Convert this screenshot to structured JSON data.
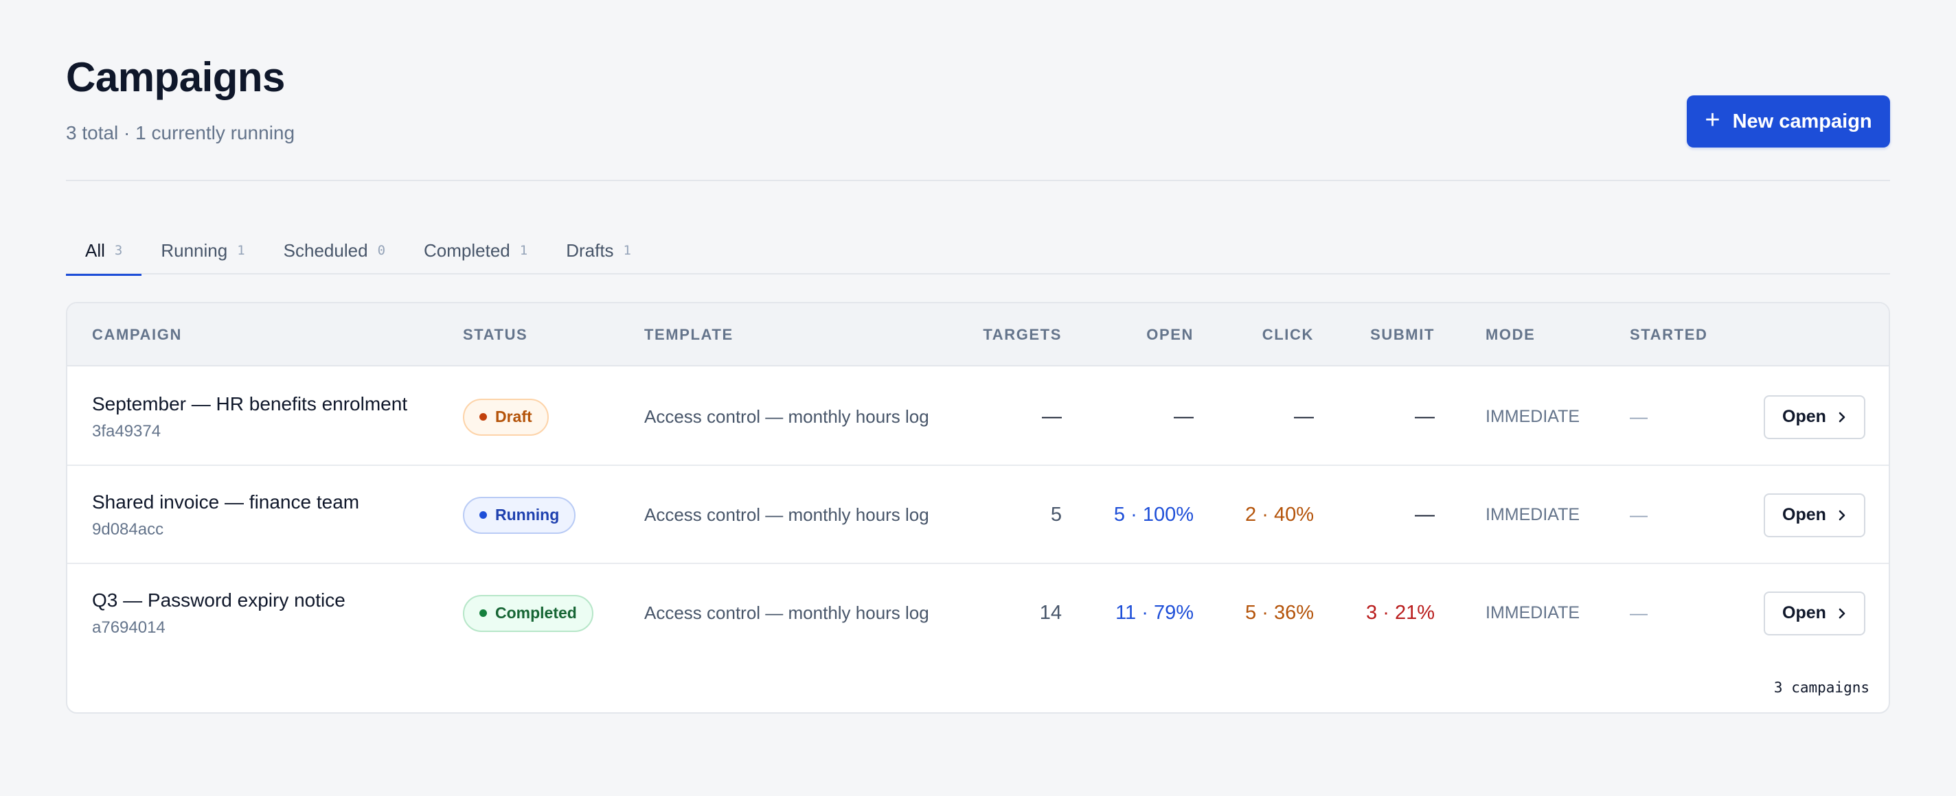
{
  "header": {
    "title": "Campaigns",
    "subtitle": "3 total · 1 currently running",
    "new_button": {
      "icon": "plus-icon",
      "label": "New campaign"
    }
  },
  "tabs": [
    {
      "label": "All",
      "count": "3",
      "active": true
    },
    {
      "label": "Running",
      "count": "1"
    },
    {
      "label": "Scheduled",
      "count": "0"
    },
    {
      "label": "Completed",
      "count": "1"
    },
    {
      "label": "Drafts",
      "count": "1"
    }
  ],
  "table": {
    "columns": {
      "campaign": "CAMPAIGN",
      "status": "STATUS",
      "template": "TEMPLATE",
      "targets": "TARGETS",
      "open": "OPEN",
      "click": "CLICK",
      "submit": "SUBMIT",
      "mode": "MODE",
      "started": "STARTED"
    },
    "rows": [
      {
        "name": "September — HR benefits enrolment",
        "id": "3fa49374",
        "status": "Draft",
        "template": "Access control — monthly hours log",
        "targets": "—",
        "open": "—",
        "click": "—",
        "submit": "—",
        "mode": "IMMEDIATE",
        "started": "—",
        "action": "Open"
      },
      {
        "name": "Shared invoice — finance team",
        "id": "9d084acc",
        "status": "Running",
        "template": "Access control — monthly hours log",
        "targets": "5",
        "open": "5 · 100%",
        "click": "2 · 40%",
        "submit": "—",
        "mode": "IMMEDIATE",
        "started": "—",
        "action": "Open"
      },
      {
        "name": "Q3 — Password expiry notice",
        "id": "a7694014",
        "status": "Completed",
        "template": "Access control — monthly hours log",
        "targets": "14",
        "open": "11 · 79%",
        "click": "5 · 36%",
        "submit": "3 · 21%",
        "mode": "IMMEDIATE",
        "started": "—",
        "action": "Open"
      }
    ],
    "footer": "3 campaigns"
  },
  "colors": {
    "accent": "#1d4ed8",
    "draft": "#b45309",
    "running": "#1e40af",
    "completed": "#166534",
    "submit": "#b91c1c"
  }
}
